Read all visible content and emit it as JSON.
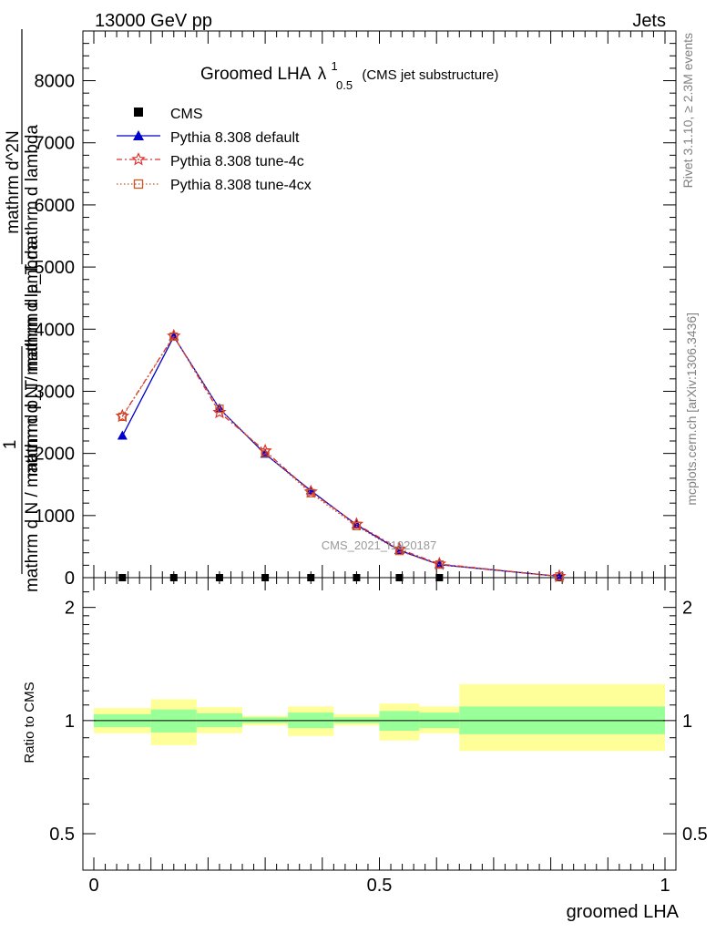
{
  "header": {
    "left": "13000 GeV pp",
    "right": "Jets"
  },
  "side_notes": {
    "top": "Rivet 3.1.10, ≥ 2.3M events",
    "bottom": "mcplots.cern.ch [arXiv:1306.3436]"
  },
  "watermark": "CMS_2021_I1920187",
  "chart_data": [
    {
      "type": "line",
      "title": {
        "main": "Groomed LHA",
        "lambda": "λ",
        "sup": "1",
        "sub": "0.5",
        "note": "(CMS jet substructure)"
      },
      "ylabel": {
        "rotated_line1": "mathrm d N / mathrm d p_T mathrm d lambda",
        "rotated_line2": "mathrm d N / mathrm d p_T mathrm d lambda",
        "fraction_top": "mathrm d^2N",
        "fraction_frac": "1"
      },
      "yticks": [
        "0",
        "1000",
        "2000",
        "3000",
        "4000",
        "5000",
        "6000",
        "7000",
        "8000"
      ],
      "ylim": [
        0,
        8800
      ],
      "xlim": [
        0,
        1
      ],
      "x": [
        0.05,
        0.14,
        0.22,
        0.3,
        0.38,
        0.46,
        0.535,
        0.605,
        0.815
      ],
      "series": [
        {
          "name": "CMS",
          "color": "#000000",
          "marker": "square",
          "values": [
            0,
            0,
            0,
            0,
            0,
            0,
            0,
            0,
            0
          ]
        },
        {
          "name": "Pythia 8.308 default",
          "color": "#0000cc",
          "marker": "triangle",
          "values": [
            2280,
            3880,
            2720,
            1990,
            1400,
            850,
            440,
            210,
            20
          ]
        },
        {
          "name": "Pythia 8.308 tune-4c",
          "color": "#dd3333",
          "marker": "star",
          "values": [
            2600,
            3890,
            2660,
            2040,
            1380,
            860,
            460,
            220,
            20
          ]
        },
        {
          "name": "Pythia 8.308 tune-4cx",
          "color": "#cc5522",
          "marker": "open-square",
          "values": [
            2590,
            3880,
            2720,
            2010,
            1360,
            830,
            430,
            210,
            20
          ]
        }
      ]
    },
    {
      "type": "area",
      "ylabel": "Ratio to CMS",
      "xlabel": "groomed LHA",
      "xticks": [
        "0",
        "0.5",
        "1"
      ],
      "yticks": [
        "0.5",
        "1",
        "2"
      ],
      "ylim": [
        0.4,
        2.4
      ],
      "log_scale": true,
      "reference_line": 1,
      "bin_edges": [
        0,
        0.1,
        0.18,
        0.26,
        0.34,
        0.42,
        0.5,
        0.57,
        0.64,
        1.0
      ],
      "band_inner": {
        "color": "#99ff99",
        "low": [
          0.96,
          0.93,
          0.96,
          0.985,
          0.955,
          0.985,
          0.94,
          0.955,
          0.92
        ],
        "high": [
          1.04,
          1.07,
          1.045,
          1.02,
          1.05,
          1.02,
          1.06,
          1.05,
          1.09
        ]
      },
      "band_outer": {
        "color": "#ffff99",
        "low": [
          0.925,
          0.86,
          0.925,
          0.97,
          0.91,
          0.97,
          0.885,
          0.925,
          0.83
        ],
        "high": [
          1.08,
          1.14,
          1.085,
          1.03,
          1.09,
          1.04,
          1.11,
          1.09,
          1.25
        ]
      }
    }
  ]
}
